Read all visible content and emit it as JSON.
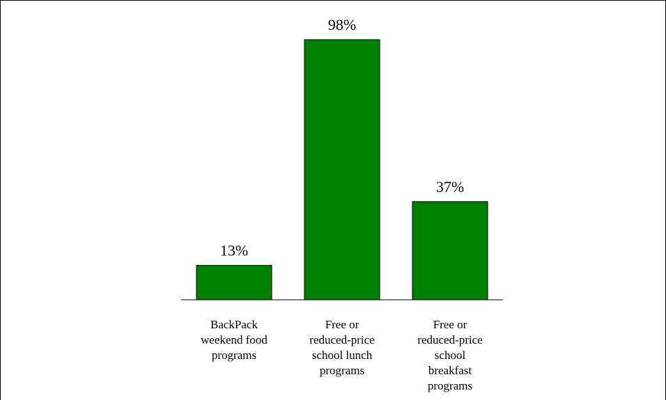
{
  "chart_data": {
    "type": "bar",
    "categories": [
      [
        "BackPack",
        "weekend food",
        "programs"
      ],
      [
        "Free or",
        "reduced-price",
        "school lunch",
        "programs"
      ],
      [
        "Free or",
        "reduced-price",
        "school",
        "breakfast",
        "programs"
      ]
    ],
    "values": [
      13,
      98,
      37
    ],
    "data_labels": [
      "13%",
      "98%",
      "37%"
    ],
    "ylim": [
      0,
      100
    ],
    "colors": {
      "bar": "#008000",
      "bar_stroke": "#000000"
    },
    "grid": false,
    "legend": "none"
  }
}
